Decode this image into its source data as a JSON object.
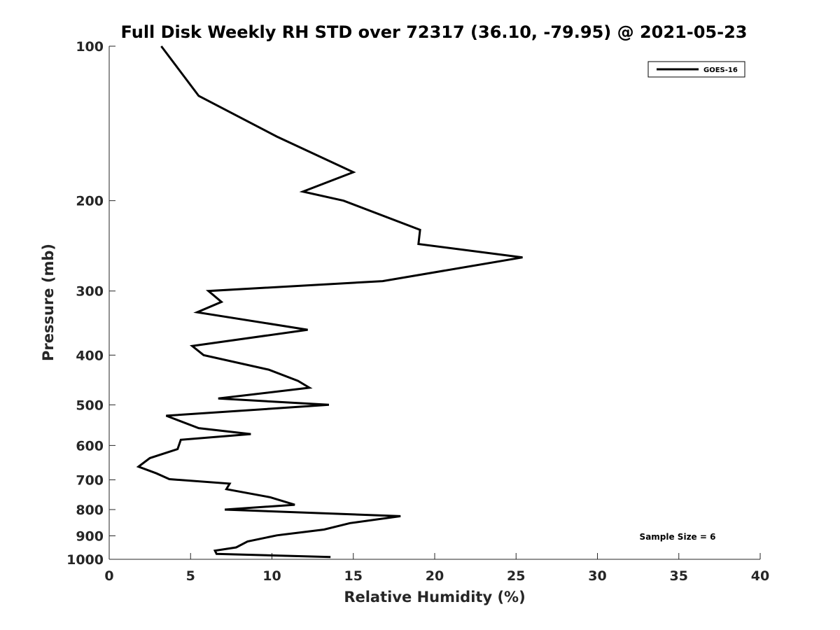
{
  "chart_data": {
    "type": "line",
    "title": "Full Disk Weekly RH STD over 72317 (36.10, -79.95) @ 2021-05-23",
    "xlabel": "Relative Humidity (%)",
    "ylabel": "Pressure (mb)",
    "xlim": [
      0,
      40
    ],
    "ylim": [
      100,
      1000
    ],
    "y_scale": "log",
    "y_reversed": true,
    "grid": false,
    "legend_placement": "top-right",
    "x_ticks": [
      0,
      5,
      10,
      15,
      20,
      25,
      30,
      35,
      40
    ],
    "x_tick_labels": [
      "0",
      "5",
      "10",
      "15",
      "20",
      "25",
      "30",
      "35",
      "40"
    ],
    "y_ticks": [
      100,
      200,
      300,
      400,
      500,
      600,
      700,
      800,
      900,
      1000
    ],
    "y_tick_labels": [
      "100",
      "200",
      "300",
      "400",
      "500",
      "600",
      "700",
      "800",
      "900",
      "1000"
    ],
    "series": [
      {
        "name": "GOES-16",
        "color": "#000000",
        "x": [
          3.2,
          5.5,
          10.3,
          15.0,
          11.9,
          14.4,
          19.1,
          19.0,
          25.4,
          16.8,
          6.1,
          6.9,
          5.4,
          12.2,
          5.1,
          5.8,
          9.8,
          11.6,
          12.3,
          6.7,
          13.5,
          3.5,
          5.5,
          8.7,
          4.4,
          4.2,
          2.5,
          1.8,
          2.9,
          3.7,
          7.4,
          7.2,
          9.9,
          11.4,
          7.1,
          17.9,
          14.8,
          13.2,
          10.3,
          8.5,
          7.8,
          6.5,
          6.6,
          13.6
        ],
        "y": [
          100,
          125,
          150,
          176,
          192,
          200,
          228,
          243,
          258,
          287,
          300,
          315,
          330,
          357,
          384,
          400,
          427,
          449,
          463,
          486,
          500,
          525,
          555,
          570,
          585,
          610,
          635,
          660,
          680,
          698,
          712,
          730,
          757,
          783,
          800,
          824,
          850,
          875,
          898,
          923,
          948,
          962,
          976,
          990
        ]
      }
    ],
    "annotations": [
      "Sample Size = 6"
    ]
  }
}
